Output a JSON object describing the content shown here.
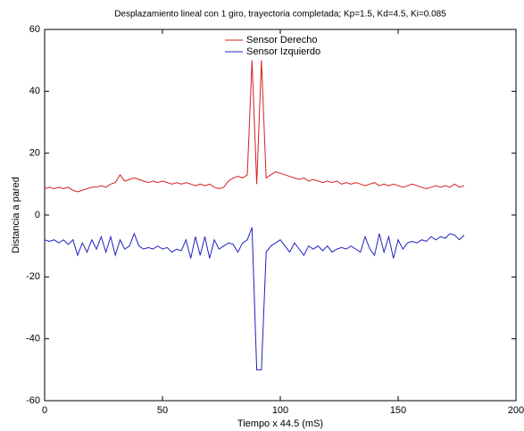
{
  "chart_data": {
    "type": "line",
    "title": "Desplazamiento lineal con 1 giro, trayectoria completada; Kp=1.5, Kd=4.5, Ki=0.085",
    "x_label": "Tiempo x 44.5 (mS)",
    "y_label": "Distancia a pared",
    "x": [
      0,
      2,
      4,
      6,
      8,
      10,
      12,
      14,
      16,
      18,
      20,
      22,
      24,
      26,
      28,
      30,
      32,
      34,
      36,
      38,
      40,
      42,
      44,
      46,
      48,
      50,
      52,
      54,
      56,
      58,
      60,
      62,
      64,
      66,
      68,
      70,
      72,
      74,
      76,
      78,
      80,
      82,
      84,
      86,
      88,
      90,
      92,
      94,
      96,
      98,
      100,
      102,
      104,
      106,
      108,
      110,
      112,
      114,
      116,
      118,
      120,
      122,
      124,
      126,
      128,
      130,
      132,
      134,
      136,
      138,
      140,
      142,
      144,
      146,
      148,
      150,
      152,
      154,
      156,
      158,
      160,
      162,
      164,
      166,
      168,
      170,
      172,
      174,
      176,
      178
    ],
    "series": [
      {
        "name": "Sensor Derecho",
        "color": "#d62020",
        "values": [
          8.5,
          9,
          8.5,
          9,
          8.5,
          9,
          8,
          7.5,
          8,
          8.5,
          9,
          9,
          9.5,
          9,
          10,
          10.5,
          13,
          11,
          11.5,
          12,
          11.5,
          11,
          10.5,
          11,
          10.5,
          11,
          10.5,
          10,
          10.5,
          10,
          10.5,
          10,
          9.5,
          10,
          9.5,
          10,
          9,
          8.5,
          9,
          11,
          12,
          12.5,
          12,
          13,
          50,
          10,
          50,
          12,
          13,
          14,
          13.5,
          13,
          12.5,
          12,
          11.5,
          12,
          11,
          11.5,
          11,
          10.5,
          11,
          10.5,
          11,
          10,
          10.5,
          10,
          10.5,
          10,
          9.5,
          10,
          10.5,
          9.5,
          10,
          9.5,
          10,
          9.5,
          9,
          9.5,
          10,
          9.5,
          9,
          8.5,
          9,
          9.5,
          9,
          9.5,
          9,
          10,
          9,
          9.5
        ]
      },
      {
        "name": "Sensor Izquierdo",
        "color": "#2020c0",
        "values": [
          -8,
          -8.5,
          -8,
          -9,
          -8,
          -9.5,
          -8,
          -13,
          -9,
          -12,
          -8,
          -11,
          -7,
          -12,
          -7,
          -13,
          -8,
          -11,
          -10,
          -6,
          -10,
          -11,
          -10.5,
          -11,
          -10,
          -11,
          -10.5,
          -12,
          -11,
          -11.5,
          -8,
          -14,
          -7,
          -13,
          -7,
          -14,
          -8,
          -11,
          -10,
          -9,
          -9.5,
          -12,
          -9,
          -8,
          -4,
          -50,
          -50,
          -12,
          -10,
          -9,
          -8,
          -10,
          -12,
          -9,
          -11,
          -13,
          -10,
          -11,
          -10,
          -11.5,
          -10,
          -12,
          -11,
          -10.5,
          -11,
          -10,
          -11,
          -12,
          -7,
          -11,
          -13,
          -6,
          -12,
          -7,
          -14,
          -8,
          -11,
          -9,
          -8.5,
          -9,
          -8,
          -8.5,
          -7,
          -8,
          -7,
          -7.5,
          -6,
          -6.5,
          -8,
          -6.5
        ]
      }
    ],
    "xlim": [
      0,
      200
    ],
    "xticks": [
      0,
      50,
      100,
      150,
      200
    ],
    "ylim": [
      -60,
      60
    ],
    "yticks": [
      -60,
      -40,
      -20,
      0,
      20,
      40,
      60
    ],
    "legend": "north"
  }
}
